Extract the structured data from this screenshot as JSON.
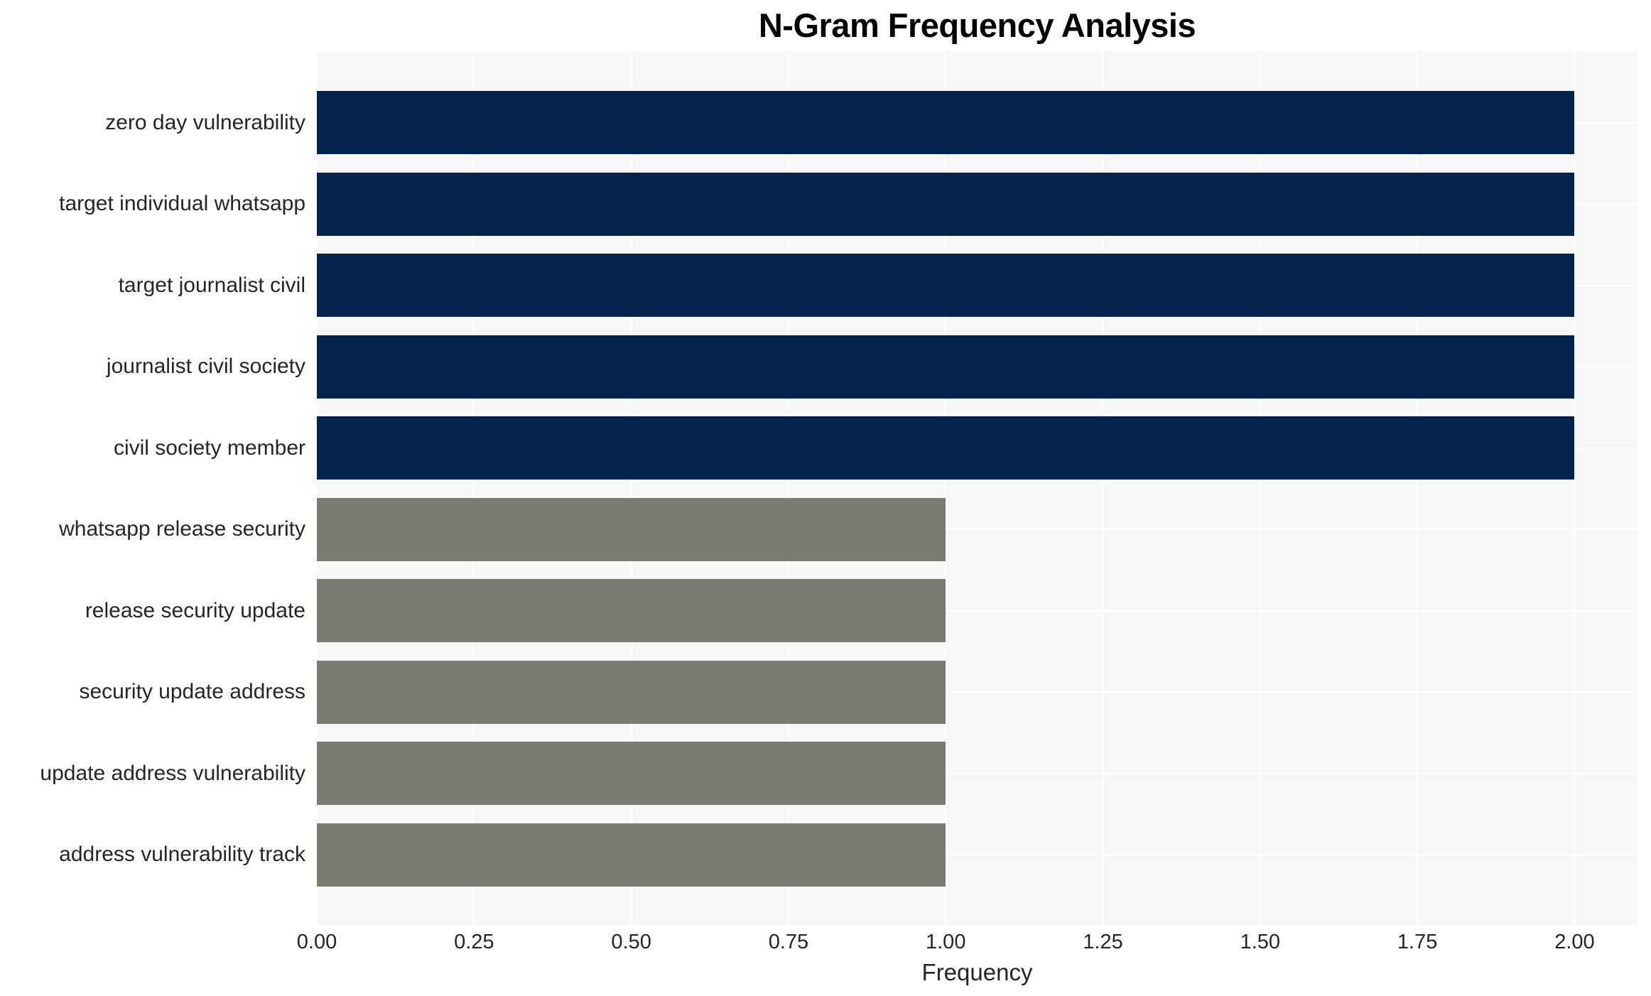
{
  "chart_data": {
    "type": "bar",
    "orientation": "horizontal",
    "title": "N-Gram Frequency Analysis",
    "xlabel": "Frequency",
    "ylabel": "",
    "categories": [
      "zero day vulnerability",
      "target individual whatsapp",
      "target journalist civil",
      "journalist civil society",
      "civil society member",
      "whatsapp release security",
      "release security update",
      "security update address",
      "update address vulnerability",
      "address vulnerability track"
    ],
    "values": [
      2,
      2,
      2,
      2,
      2,
      1,
      1,
      1,
      1,
      1
    ],
    "bar_colors": [
      "#03234c",
      "#03234c",
      "#03234c",
      "#03234c",
      "#03234c",
      "#7b7a73",
      "#7b7a73",
      "#7b7a73",
      "#7b7a73",
      "#7b7a73"
    ],
    "xlim": [
      0,
      2.1
    ],
    "xticks": [
      0,
      0.25,
      0.5,
      0.75,
      1.0,
      1.25,
      1.5,
      1.75,
      2.0
    ],
    "xtick_labels": [
      "0.00",
      "0.25",
      "0.50",
      "0.75",
      "1.00",
      "1.25",
      "1.50",
      "1.75",
      "2.00"
    ],
    "grid": true,
    "legend": false,
    "background_color": "#f7f7f7",
    "gridline_color": "#ffffff",
    "text_color": "#262626",
    "title_color": "#000000"
  }
}
